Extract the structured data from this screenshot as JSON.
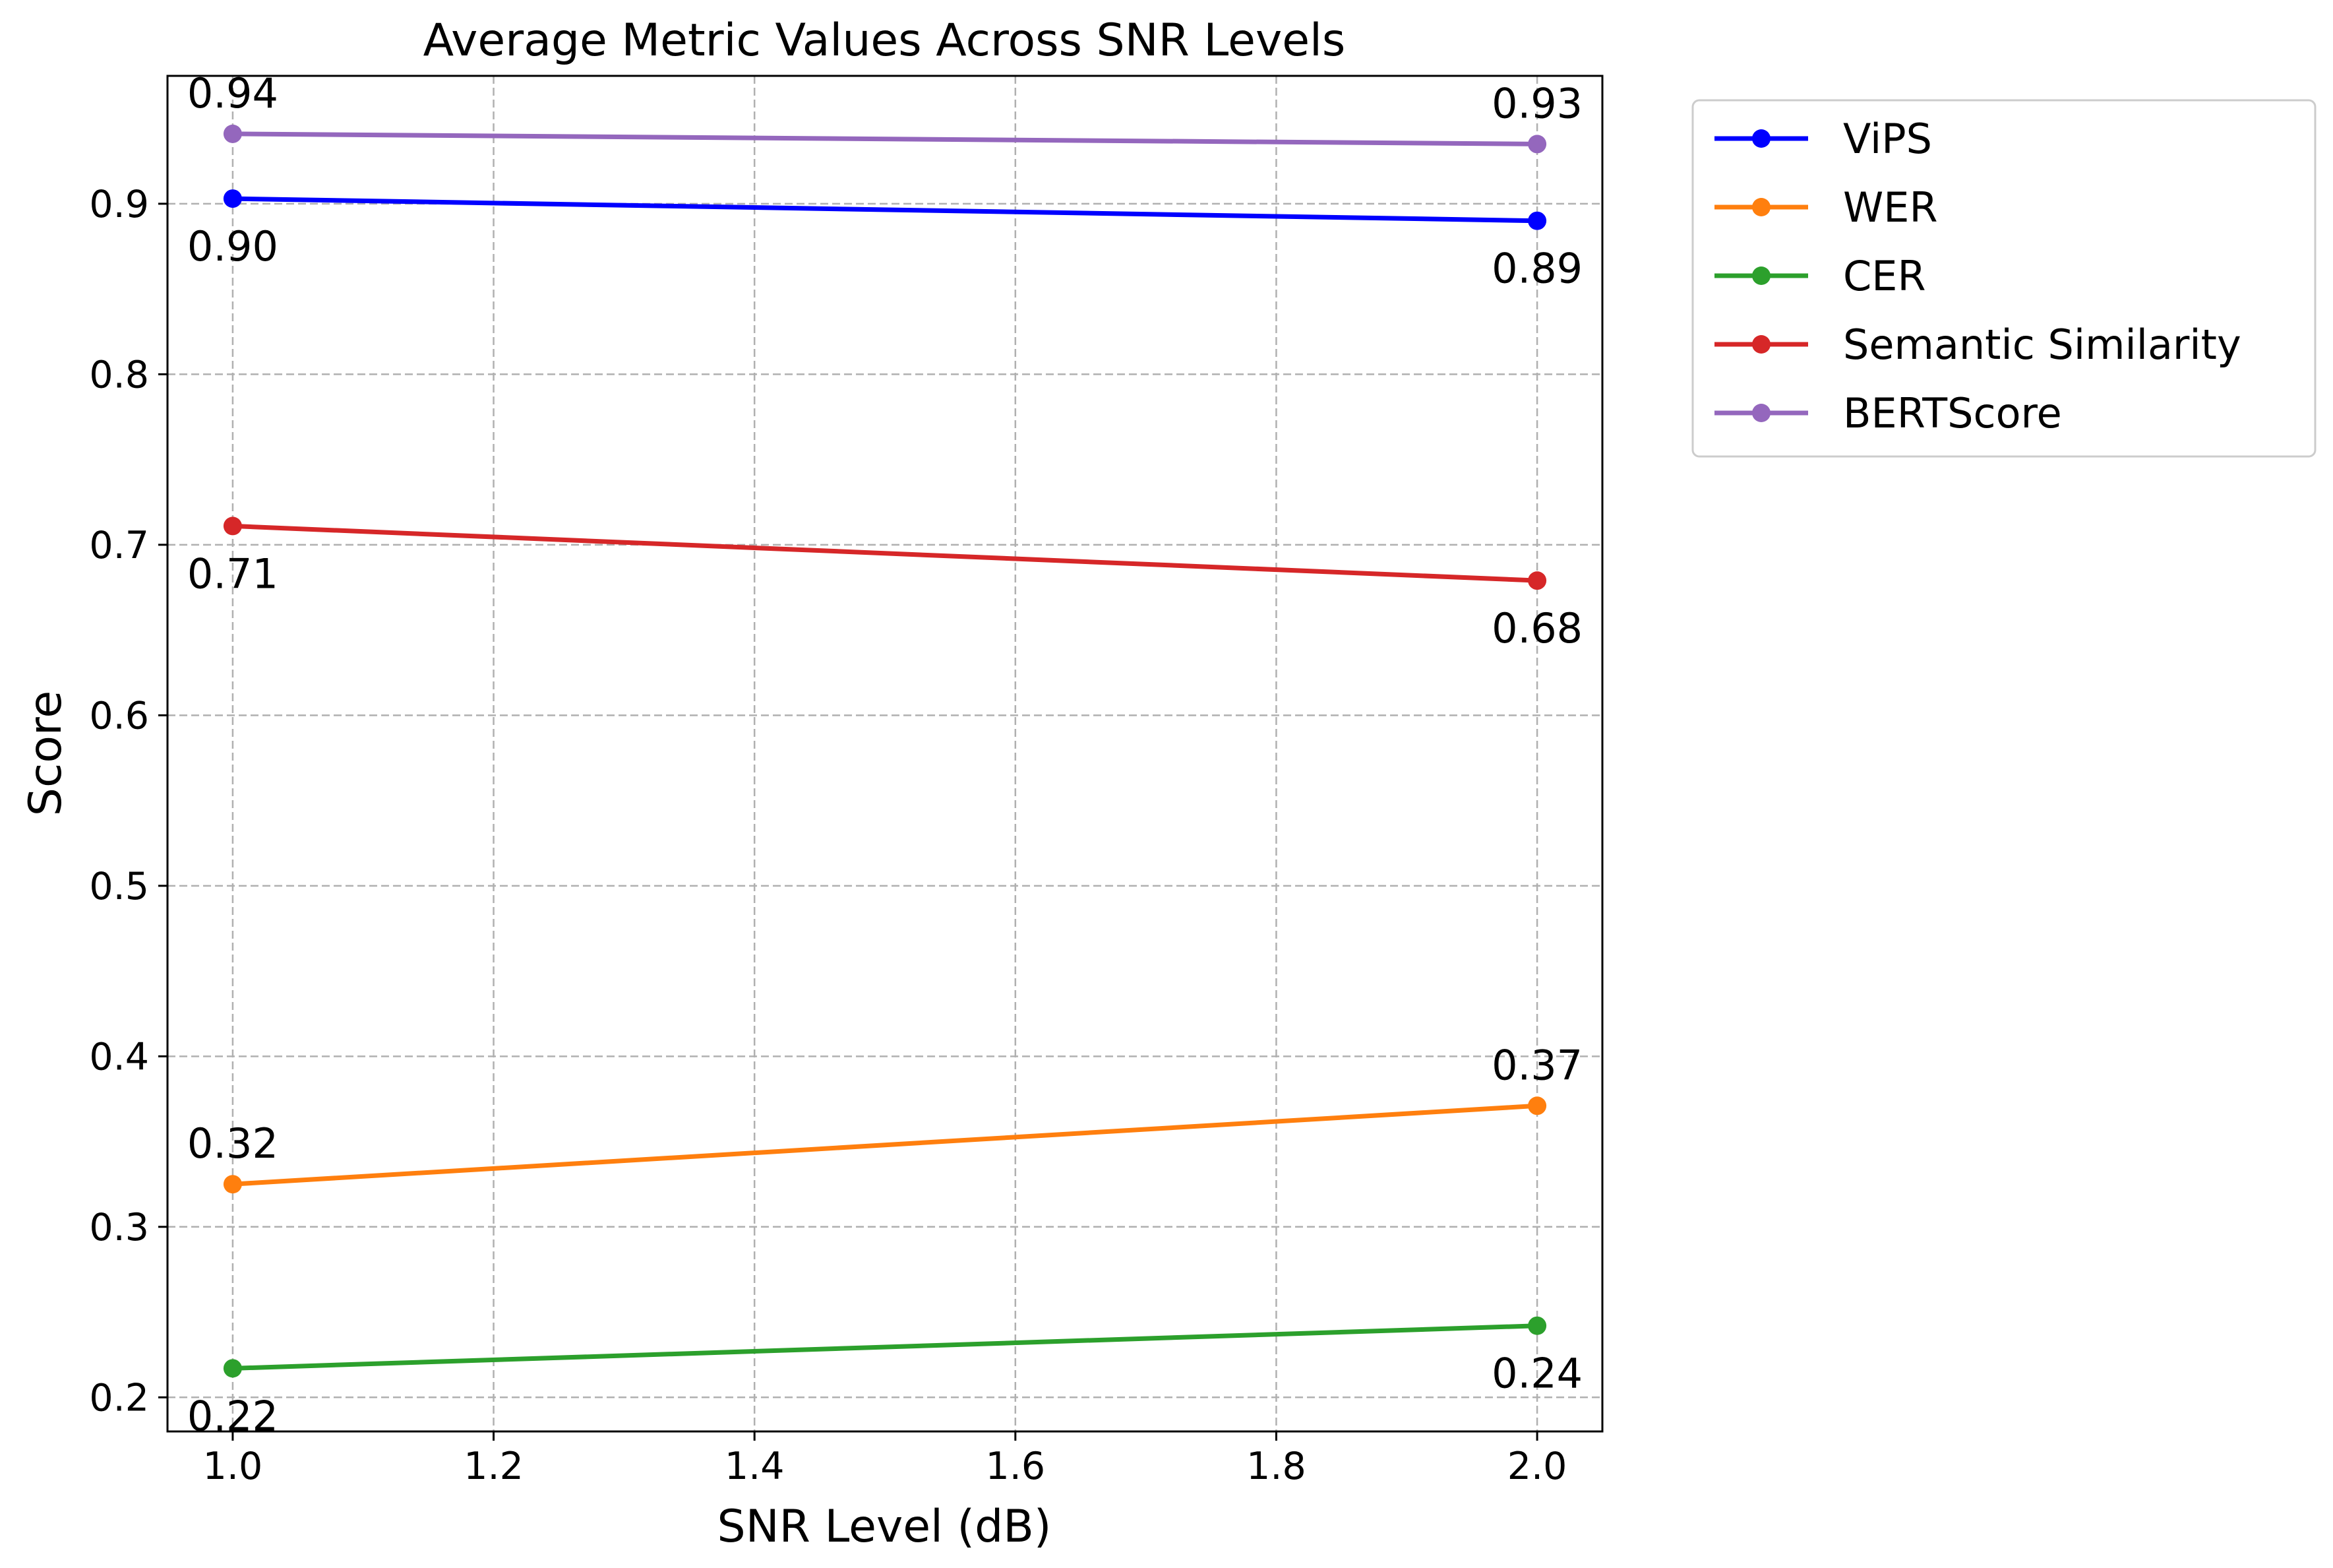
{
  "chart_data": {
    "type": "line",
    "title": "Average Metric Values Across SNR Levels",
    "xlabel": "SNR Level (dB)",
    "ylabel": "Score",
    "x": [
      1.0,
      2.0
    ],
    "xlim": [
      0.95,
      2.05
    ],
    "ylim": [
      0.18,
      0.975
    ],
    "xticks": [
      1.0,
      1.2,
      1.4,
      1.6,
      1.8,
      2.0
    ],
    "xtick_labels": [
      "1.0",
      "1.2",
      "1.4",
      "1.6",
      "1.8",
      "2.0"
    ],
    "yticks": [
      0.2,
      0.3,
      0.4,
      0.5,
      0.6,
      0.7,
      0.8,
      0.9
    ],
    "ytick_labels": [
      "0.2",
      "0.3",
      "0.4",
      "0.5",
      "0.6",
      "0.7",
      "0.8",
      "0.9"
    ],
    "grid": true,
    "legend_position": "outside-right-top",
    "series": [
      {
        "name": "ViPS",
        "color": "#0000ff",
        "values": [
          0.903,
          0.89
        ],
        "labels": [
          "0.90",
          "0.89"
        ],
        "label_side": [
          "below",
          "below"
        ]
      },
      {
        "name": "WER",
        "color": "#ff7f0e",
        "values": [
          0.325,
          0.371
        ],
        "labels": [
          "0.32",
          "0.37"
        ],
        "label_side": [
          "above",
          "above"
        ]
      },
      {
        "name": "CER",
        "color": "#2ca02c",
        "values": [
          0.217,
          0.242
        ],
        "labels": [
          "0.22",
          "0.24"
        ],
        "label_side": [
          "below",
          "below"
        ]
      },
      {
        "name": "Semantic Similarity",
        "color": "#d62728",
        "values": [
          0.711,
          0.679
        ],
        "labels": [
          "0.71",
          "0.68"
        ],
        "label_side": [
          "below",
          "below"
        ]
      },
      {
        "name": "BERTScore",
        "color": "#9467bd",
        "values": [
          0.941,
          0.935
        ],
        "labels": [
          "0.94",
          "0.93"
        ],
        "label_side": [
          "above",
          "above"
        ]
      }
    ]
  }
}
